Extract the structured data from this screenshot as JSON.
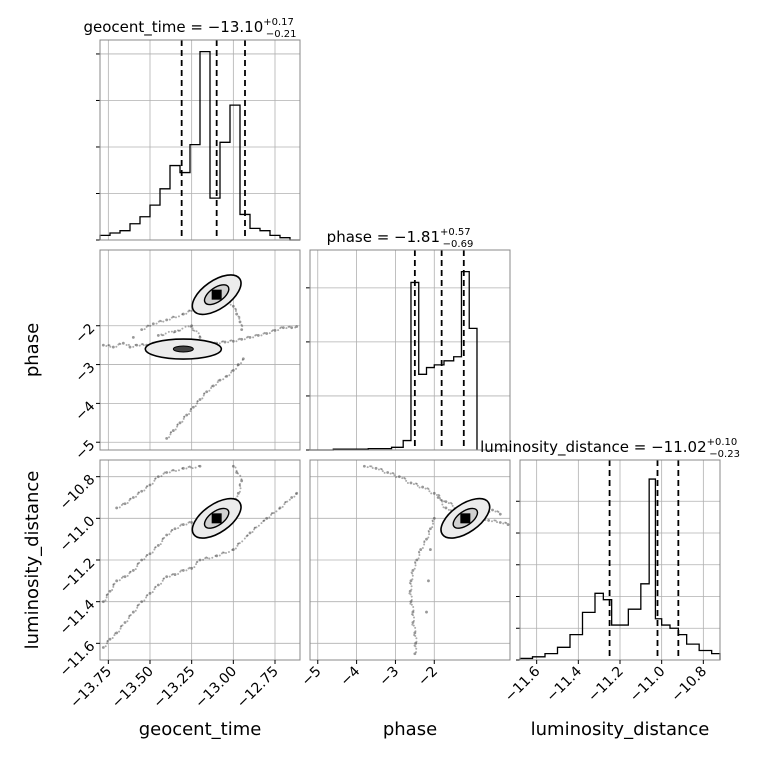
{
  "chart_data": {
    "type": "corner",
    "parameters": [
      "geocent_time",
      "phase",
      "luminosity_distance"
    ],
    "ranges": {
      "geocent_time": [
        -13.8,
        -12.6
      ],
      "phase": [
        -5.2,
        -0.05
      ],
      "luminosity_distance": [
        -11.68,
        -10.72
      ]
    },
    "grid": true,
    "quantile_style": "dashed",
    "panels": [
      {
        "kind": "hist",
        "param": "geocent_time",
        "title_prefix": "geocent_time = ",
        "title_value": "−13.10",
        "title_sup": "+0.17",
        "title_sub": "−0.21",
        "quantiles": [
          -13.31,
          -13.1,
          -12.93
        ],
        "bin_edges": [
          -13.8,
          -13.74,
          -13.68,
          -13.62,
          -13.56,
          -13.5,
          -13.44,
          -13.38,
          -13.32,
          -13.26,
          -13.2,
          -13.14,
          -13.08,
          -13.02,
          -12.96,
          -12.9,
          -12.84,
          -12.78,
          -12.72,
          -12.66,
          -12.6
        ],
        "counts": [
          1,
          1.5,
          2,
          3.5,
          5,
          7.5,
          11,
          16,
          14.5,
          20.5,
          40.5,
          9,
          21,
          29,
          5.5,
          2.5,
          2,
          1,
          0.5,
          0
        ],
        "yticks": [
          0,
          10,
          20,
          30,
          40
        ],
        "ymax": 43
      },
      {
        "kind": "hist",
        "param": "phase",
        "title_prefix": "phase = ",
        "title_value": "−1.81",
        "title_sup": "+0.57",
        "title_sub": "−0.69",
        "quantiles": [
          -2.5,
          -1.81,
          -1.24
        ],
        "bin_edges": [
          -5.2,
          -4.9,
          -4.6,
          -4.3,
          -4.0,
          -3.7,
          -3.4,
          -3.1,
          -2.8,
          -2.6,
          -2.4,
          -2.2,
          -2.0,
          -1.75,
          -1.5,
          -1.3,
          -1.1,
          -0.9
        ],
        "counts": [
          0,
          0,
          0.3,
          0.3,
          0.3,
          0.5,
          0.5,
          1,
          3.5,
          62,
          28,
          30.5,
          31.5,
          33,
          34.5,
          66,
          45
        ],
        "yticks": [
          0,
          20,
          40,
          60
        ],
        "ymax": 74
      },
      {
        "kind": "hist",
        "param": "luminosity_distance",
        "title_prefix": "luminosity_distance = ",
        "title_value": "−11.02",
        "title_sup": "+0.10",
        "title_sub": "−0.23",
        "quantiles": [
          -11.25,
          -11.02,
          -10.92
        ],
        "bin_edges": [
          -11.68,
          -11.62,
          -11.56,
          -11.5,
          -11.44,
          -11.38,
          -11.32,
          -11.28,
          -11.24,
          -11.2,
          -11.16,
          -11.1,
          -11.06,
          -11.03,
          -11.0,
          -10.96,
          -10.92,
          -10.88,
          -10.82,
          -10.76,
          -10.72
        ],
        "counts": [
          0.5,
          1,
          2,
          4,
          8,
          15,
          21,
          19,
          11,
          11,
          16,
          24,
          57,
          13,
          11,
          10,
          8,
          5,
          3,
          2
        ],
        "yticks": [
          0,
          10,
          20,
          30,
          40,
          50
        ],
        "ymax": 63
      },
      {
        "kind": "scatter2d",
        "x": "geocent_time",
        "y": "phase",
        "center": [
          -13.1,
          -1.2
        ],
        "secondary_peak": [
          -13.3,
          -2.6
        ],
        "points": [
          [
            -13.78,
            -2.5
          ],
          [
            -13.72,
            -2.55
          ],
          [
            -13.66,
            -2.45
          ],
          [
            -13.62,
            -2.55
          ],
          [
            -13.58,
            -2.5
          ],
          [
            -13.52,
            -2.5
          ],
          [
            -13.47,
            -2.45
          ],
          [
            -13.42,
            -2.48
          ],
          [
            -13.38,
            -2.52
          ],
          [
            -13.34,
            -2.6
          ],
          [
            -13.3,
            -2.58
          ],
          [
            -13.25,
            -2.55
          ],
          [
            -13.2,
            -2.6
          ],
          [
            -13.15,
            -2.5
          ],
          [
            -13.1,
            -2.45
          ],
          [
            -13.05,
            -2.42
          ],
          [
            -13.0,
            -2.4
          ],
          [
            -12.95,
            -2.35
          ],
          [
            -12.9,
            -2.3
          ],
          [
            -12.85,
            -2.25
          ],
          [
            -12.8,
            -2.2
          ],
          [
            -12.75,
            -2.12
          ],
          [
            -12.7,
            -2.05
          ],
          [
            -12.65,
            -2.05
          ],
          [
            -12.62,
            -2.02
          ],
          [
            -13.4,
            -4.9
          ],
          [
            -13.36,
            -4.7
          ],
          [
            -13.32,
            -4.5
          ],
          [
            -13.28,
            -4.3
          ],
          [
            -13.24,
            -4.1
          ],
          [
            -13.2,
            -3.9
          ],
          [
            -13.16,
            -3.7
          ],
          [
            -13.12,
            -3.55
          ],
          [
            -13.08,
            -3.4
          ],
          [
            -13.04,
            -3.3
          ],
          [
            -13.0,
            -3.15
          ],
          [
            -12.97,
            -3.0
          ],
          [
            -12.94,
            -2.85
          ],
          [
            -13.55,
            -2.1
          ],
          [
            -13.48,
            -1.95
          ],
          [
            -13.4,
            -1.85
          ],
          [
            -13.3,
            -1.7
          ],
          [
            -13.22,
            -1.55
          ],
          [
            -13.15,
            -1.35
          ],
          [
            -13.12,
            -1.25
          ],
          [
            -13.08,
            -1.15
          ],
          [
            -13.05,
            -1.3
          ],
          [
            -13.0,
            -1.5
          ],
          [
            -12.98,
            -1.7
          ],
          [
            -12.96,
            -1.9
          ],
          [
            -12.95,
            -2.1
          ],
          [
            -13.2,
            -2.3
          ],
          [
            -13.25,
            -2.0
          ],
          [
            -13.35,
            -2.15
          ],
          [
            -13.45,
            -2.25
          ],
          [
            -13.6,
            -2.3
          ]
        ]
      },
      {
        "kind": "scatter2d",
        "x": "geocent_time",
        "y": "luminosity_distance",
        "center": [
          -13.1,
          -11.0
        ],
        "points": [
          [
            -13.78,
            -11.4
          ],
          [
            -13.74,
            -11.35
          ],
          [
            -13.7,
            -11.3
          ],
          [
            -13.65,
            -11.28
          ],
          [
            -13.6,
            -11.25
          ],
          [
            -13.55,
            -11.2
          ],
          [
            -13.5,
            -11.17
          ],
          [
            -13.45,
            -11.13
          ],
          [
            -13.4,
            -11.08
          ],
          [
            -13.35,
            -11.05
          ],
          [
            -13.3,
            -11.03
          ],
          [
            -13.25,
            -11.02
          ],
          [
            -13.2,
            -11.0
          ],
          [
            -13.15,
            -10.99
          ],
          [
            -13.1,
            -11.0
          ],
          [
            -13.05,
            -10.98
          ],
          [
            -13.0,
            -10.95
          ],
          [
            -12.97,
            -10.88
          ],
          [
            -12.95,
            -10.82
          ],
          [
            -12.98,
            -10.78
          ],
          [
            -13.0,
            -10.75
          ],
          [
            -13.78,
            -11.62
          ],
          [
            -13.74,
            -11.58
          ],
          [
            -13.7,
            -11.55
          ],
          [
            -13.65,
            -11.5
          ],
          [
            -13.6,
            -11.45
          ],
          [
            -13.55,
            -11.4
          ],
          [
            -13.5,
            -11.36
          ],
          [
            -13.45,
            -11.32
          ],
          [
            -13.4,
            -11.28
          ],
          [
            -13.35,
            -11.27
          ],
          [
            -13.3,
            -11.25
          ],
          [
            -13.25,
            -11.24
          ],
          [
            -13.2,
            -11.2
          ],
          [
            -13.1,
            -11.18
          ],
          [
            -13.0,
            -11.15
          ],
          [
            -12.9,
            -11.07
          ],
          [
            -12.8,
            -11.0
          ],
          [
            -12.72,
            -10.95
          ],
          [
            -12.65,
            -10.9
          ],
          [
            -12.62,
            -10.88
          ],
          [
            -13.7,
            -10.95
          ],
          [
            -13.65,
            -10.93
          ],
          [
            -13.6,
            -10.9
          ],
          [
            -13.55,
            -10.87
          ],
          [
            -13.5,
            -10.84
          ],
          [
            -13.45,
            -10.8
          ],
          [
            -13.4,
            -10.78
          ],
          [
            -13.3,
            -10.76
          ],
          [
            -13.2,
            -10.75
          ]
        ]
      },
      {
        "kind": "scatter2d",
        "x": "phase",
        "y": "luminosity_distance",
        "center": [
          -1.2,
          -11.0
        ],
        "points": [
          [
            -3.8,
            -10.75
          ],
          [
            -3.5,
            -10.76
          ],
          [
            -3.2,
            -10.78
          ],
          [
            -2.9,
            -10.8
          ],
          [
            -2.6,
            -10.83
          ],
          [
            -2.3,
            -10.85
          ],
          [
            -2.0,
            -10.88
          ],
          [
            -1.7,
            -10.92
          ],
          [
            -1.4,
            -10.95
          ],
          [
            -1.2,
            -10.98
          ],
          [
            -0.9,
            -11.0
          ],
          [
            -0.6,
            -11.01
          ],
          [
            -0.3,
            -11.02
          ],
          [
            -0.1,
            -11.03
          ],
          [
            -2.5,
            -11.65
          ],
          [
            -2.48,
            -11.6
          ],
          [
            -2.5,
            -11.55
          ],
          [
            -2.55,
            -11.5
          ],
          [
            -2.55,
            -11.45
          ],
          [
            -2.6,
            -11.4
          ],
          [
            -2.62,
            -11.35
          ],
          [
            -2.6,
            -11.3
          ],
          [
            -2.55,
            -11.25
          ],
          [
            -2.45,
            -11.2
          ],
          [
            -2.35,
            -11.15
          ],
          [
            -2.2,
            -11.1
          ],
          [
            -2.1,
            -11.05
          ],
          [
            -2.0,
            -11.0
          ],
          [
            -2.1,
            -11.15
          ],
          [
            -2.15,
            -11.3
          ],
          [
            -2.2,
            -11.45
          ],
          [
            -1.9,
            -10.9
          ],
          [
            -1.7,
            -10.95
          ],
          [
            -1.5,
            -10.98
          ],
          [
            -1.3,
            -11.0
          ],
          [
            -1.0,
            -11.0
          ],
          [
            -0.8,
            -10.98
          ],
          [
            -0.5,
            -10.96
          ],
          [
            -0.3,
            -10.98
          ]
        ]
      }
    ]
  }
}
